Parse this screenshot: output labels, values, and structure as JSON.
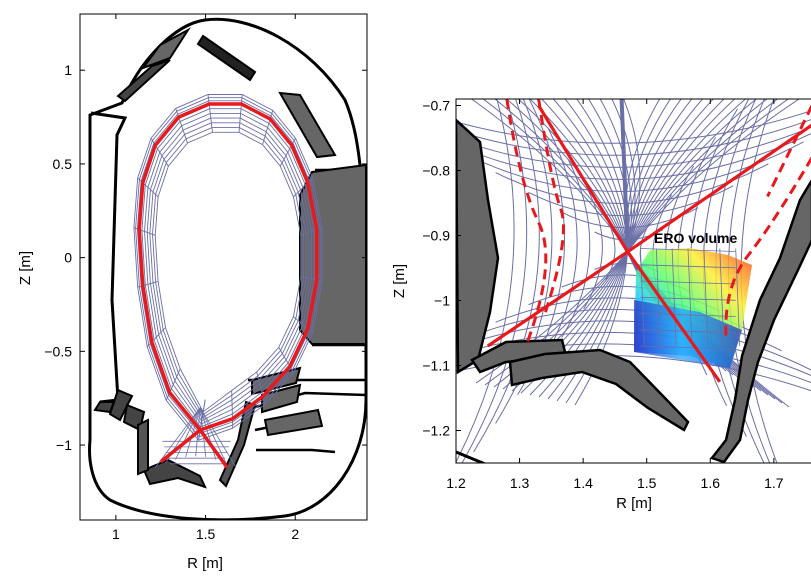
{
  "chart_data": [
    {
      "type": "line",
      "xlabel": "R [m]",
      "ylabel": "Z [m]",
      "xlim": [
        0.8,
        2.4
      ],
      "ylim": [
        -1.4,
        1.3
      ],
      "xticks": [
        1,
        1.5,
        2
      ],
      "yticks": [
        -1,
        -0.5,
        0,
        0.5,
        1
      ],
      "xtick_labels": [
        "1",
        "1.5",
        "2"
      ],
      "ytick_labels": [
        "−1",
        "−0.5",
        "0",
        "0.5",
        "1"
      ],
      "grid": false,
      "colors": {
        "separatrix": "#e8191c",
        "grid_mesh": "#6a6fa6",
        "wall": "#000000",
        "tiles": "#666666"
      },
      "separatrix": {
        "x": [
          1.47,
          1.3,
          1.2,
          1.15,
          1.13,
          1.15,
          1.22,
          1.35,
          1.52,
          1.7,
          1.86,
          1.98,
          2.07,
          2.12,
          2.12,
          2.07,
          1.97,
          1.82,
          1.65,
          1.47
        ],
        "y": [
          -0.92,
          -0.72,
          -0.45,
          -0.15,
          0.15,
          0.4,
          0.6,
          0.75,
          0.82,
          0.82,
          0.74,
          0.6,
          0.4,
          0.15,
          -0.12,
          -0.38,
          -0.58,
          -0.74,
          -0.86,
          -0.92
        ]
      },
      "legs": {
        "inner": {
          "x": [
            1.47,
            1.25
          ],
          "y": [
            -0.92,
            -1.09
          ]
        },
        "outer": {
          "x": [
            1.47,
            1.62
          ],
          "y": [
            -0.92,
            -1.12
          ]
        }
      }
    },
    {
      "type": "line",
      "xlabel": "R [m]",
      "ylabel": "Z [m]",
      "xlim": [
        1.2,
        1.76
      ],
      "ylim": [
        -1.25,
        -0.69
      ],
      "xticks": [
        1.2,
        1.3,
        1.4,
        1.5,
        1.6,
        1.7
      ],
      "yticks": [
        -1.2,
        -1.1,
        -1,
        -0.9,
        -0.8,
        -0.7
      ],
      "xtick_labels": [
        "1.2",
        "1.3",
        "1.4",
        "1.5",
        "1.6",
        "1.7"
      ],
      "ytick_labels": [
        "−1.2",
        "−1.1",
        "−1",
        "−0.9",
        "−0.8",
        "−0.7"
      ],
      "grid": false,
      "annotation": "ERO volume",
      "x_point": {
        "x": 1.47,
        "y": -0.925
      },
      "separatrix_legs": [
        {
          "x": [
            1.47,
            1.25
          ],
          "y": [
            -0.925,
            -1.07
          ]
        },
        {
          "x": [
            1.47,
            1.615
          ],
          "y": [
            -0.925,
            -1.125
          ]
        },
        {
          "x": [
            1.47,
            1.33
          ],
          "y": [
            -0.925,
            -0.7
          ]
        },
        {
          "x": [
            1.47,
            1.76
          ],
          "y": [
            -0.925,
            -0.73
          ]
        }
      ],
      "ero_volume": {
        "R": [
          1.49,
          1.64
        ],
        "Z": [
          -1.07,
          -0.92
        ]
      }
    }
  ]
}
